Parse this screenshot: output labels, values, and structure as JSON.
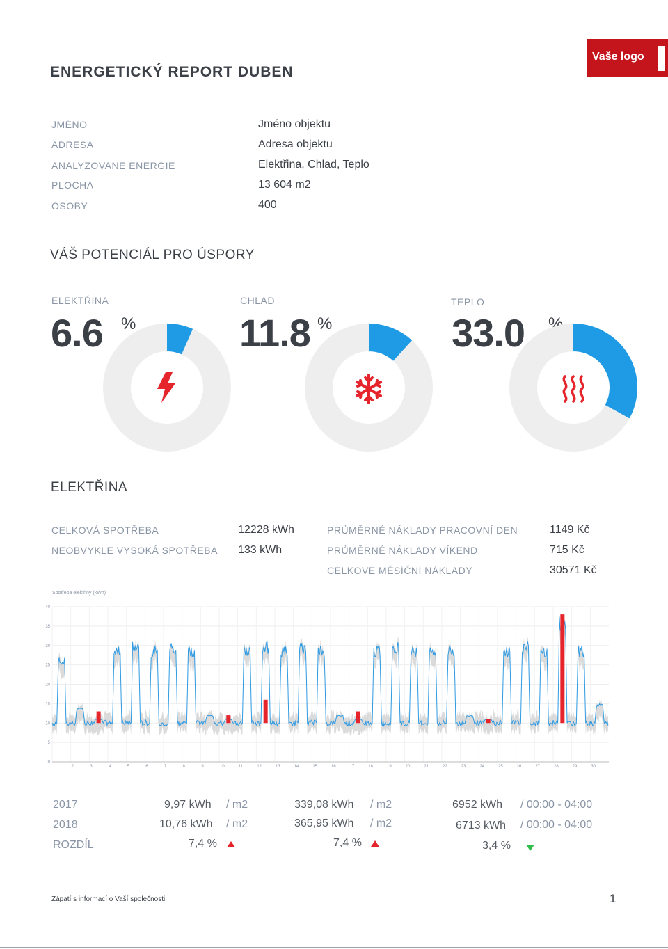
{
  "header": {
    "title": "ENERGETICKÝ REPORT DUBEN",
    "logo_text": "Vaše logo"
  },
  "info": [
    {
      "label": "JMÉNO",
      "value": "Jméno objektu"
    },
    {
      "label": "ADRESA",
      "value": "Adresa objektu"
    },
    {
      "label": "ANALYZOVANÉ ENERGIE",
      "value": "Elektřina, Chlad, Teplo"
    },
    {
      "label": "PLOCHA",
      "value": "13 604 m2"
    },
    {
      "label": "OSOBY",
      "value": "400"
    }
  ],
  "savings": {
    "heading": "VÁŠ POTENCIÁL PRO ÚSPORY",
    "items": [
      {
        "label": "ELEKTŘINA",
        "value": "6.6",
        "unit": "%",
        "fraction": 0.066,
        "icon": "lightning-icon"
      },
      {
        "label": "CHLAD",
        "value": "11.8",
        "unit": "%",
        "fraction": 0.118,
        "icon": "snowflake-icon"
      },
      {
        "label": "TEPLO",
        "value": "33.0",
        "unit": "%",
        "fraction": 0.33,
        "icon": "heat-icon"
      }
    ]
  },
  "electricity": {
    "heading": "ELEKTŘINA",
    "left_stats": [
      {
        "label": "CELKOVÁ SPOTŘEBA",
        "value": "12228 kWh"
      },
      {
        "label": "NEOBVYKLE VYSOKÁ SPOTŘEBA",
        "value": "133 kWh"
      }
    ],
    "right_stats": [
      {
        "label": "PRŮMĚRNÉ NÁKLADY PRACOVNÍ DEN",
        "value": "1149 Kč"
      },
      {
        "label": "PRŮMĚRNÉ NÁKLADY VÍKEND",
        "value": "715 Kč"
      },
      {
        "label": "CELKOVÉ MĚSÍČNÍ NÁKLADY",
        "value": "30571 Kč"
      }
    ]
  },
  "chart_data": {
    "type": "line",
    "title": "Spotřeba elektřiny (kWh)",
    "ylim": [
      0,
      40
    ],
    "y_ticks": [
      0,
      5,
      10,
      15,
      20,
      25,
      30,
      35,
      40
    ],
    "x_ticks": [
      "1",
      "2",
      "3",
      "4",
      "5",
      "6",
      "7",
      "8",
      "9",
      "10",
      "11",
      "12",
      "13",
      "14",
      "15",
      "16",
      "17",
      "18",
      "19",
      "20",
      "21",
      "22",
      "23",
      "24",
      "25",
      "26",
      "27",
      "28",
      "29",
      "30"
    ],
    "grid": true,
    "colors": {
      "current": "#2f9be3",
      "previous": "#cccccc",
      "anomaly": "#e5242c",
      "anomaly_dark": "#3a2a7a"
    },
    "daily_profile": [
      {
        "day": 1,
        "base": 10,
        "peak": 27
      },
      {
        "day": 2,
        "base": 10,
        "peak": 14
      },
      {
        "day": 3,
        "base": 10,
        "peak": 11,
        "anomaly": 13
      },
      {
        "day": 4,
        "base": 10,
        "peak": 30
      },
      {
        "day": 5,
        "base": 10,
        "peak": 31
      },
      {
        "day": 6,
        "base": 10,
        "peak": 30
      },
      {
        "day": 7,
        "base": 10,
        "peak": 31
      },
      {
        "day": 8,
        "base": 10,
        "peak": 30
      },
      {
        "day": 9,
        "base": 10,
        "peak": 12
      },
      {
        "day": 10,
        "base": 10,
        "peak": 11,
        "anomaly": 12
      },
      {
        "day": 11,
        "base": 10,
        "peak": 30
      },
      {
        "day": 12,
        "base": 10,
        "peak": 31,
        "anomaly": 16
      },
      {
        "day": 13,
        "base": 10,
        "peak": 30
      },
      {
        "day": 14,
        "base": 10,
        "peak": 31
      },
      {
        "day": 15,
        "base": 10,
        "peak": 30
      },
      {
        "day": 16,
        "base": 10,
        "peak": 12
      },
      {
        "day": 17,
        "base": 10,
        "peak": 11,
        "anomaly": 13
      },
      {
        "day": 18,
        "base": 10,
        "peak": 30
      },
      {
        "day": 19,
        "base": 10,
        "peak": 31
      },
      {
        "day": 20,
        "base": 10,
        "peak": 30
      },
      {
        "day": 21,
        "base": 10,
        "peak": 30
      },
      {
        "day": 22,
        "base": 10,
        "peak": 30
      },
      {
        "day": 23,
        "base": 10,
        "peak": 12
      },
      {
        "day": 24,
        "base": 10,
        "peak": 11,
        "anomaly": 11
      },
      {
        "day": 25,
        "base": 10,
        "peak": 30
      },
      {
        "day": 26,
        "base": 10,
        "peak": 31
      },
      {
        "day": 27,
        "base": 10,
        "peak": 30
      },
      {
        "day": 28,
        "base": 10,
        "peak": 38,
        "anomaly": 38
      },
      {
        "day": 29,
        "base": 10,
        "peak": 30
      },
      {
        "day": 30,
        "base": 10,
        "peak": 15
      }
    ]
  },
  "comparison": {
    "rows": [
      {
        "label": "2017",
        "a": "9,97 kWh",
        "a_unit": "/ m2",
        "b": "339,08 kWh",
        "b_unit": "/ m2",
        "c": "6952 kWh",
        "c_unit": "/ 00:00 - 04:00"
      },
      {
        "label": "2018",
        "a": "10,76 kWh",
        "a_unit": "/ m2",
        "b": "365,95 kWh",
        "b_unit": "/ m2",
        "c": "6713 kWh",
        "c_unit": "/ 00:00 - 04:00"
      }
    ],
    "diff": {
      "label": "ROZDÍL",
      "a": "7,4 %",
      "b": "7,4 %",
      "c": "3,4 %"
    }
  },
  "footer": {
    "text": "Zápatí s informací o Vaší společnosti",
    "page": "1"
  }
}
